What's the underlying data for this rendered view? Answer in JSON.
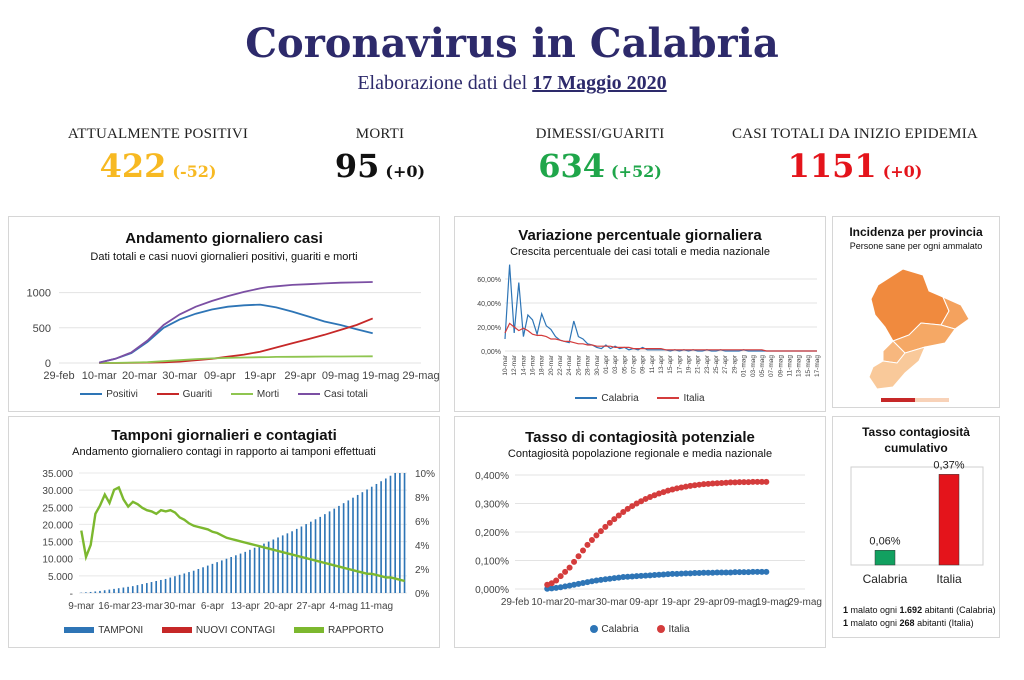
{
  "header": {
    "title": "Coronavirus in Calabria",
    "subtitle_prefix": "Elaborazione dati del",
    "subtitle_date": "17 Maggio 2020"
  },
  "kpis": [
    {
      "label": "ATTUALMENTE POSITIVI",
      "value": "422",
      "delta": "(-52)",
      "color": "#f7b922"
    },
    {
      "label": "MORTI",
      "value": "95",
      "delta": "(+0)",
      "color": "#111111"
    },
    {
      "label": "DIMESSI/GUARITI",
      "value": "634",
      "delta": "(+52)",
      "color": "#1fa64a"
    },
    {
      "label": "CASI TOTALI DA INIZIO EPIDEMIA",
      "value": "1151",
      "delta": "(+0)",
      "color": "#e4141b"
    }
  ],
  "panels": {
    "andamento": {
      "title": "Andamento giornaliero casi",
      "subtitle": "Dati totali e casi nuovi giornalieri positivi, guariti e morti",
      "legend": [
        "Positivi",
        "Guariti",
        "Morti",
        "Casi totali"
      ]
    },
    "variazione": {
      "title": "Variazione percentuale giornaliera",
      "subtitle": "Crescita percentuale dei casi totali e media nazionale",
      "legend": [
        "Calabria",
        "Italia"
      ]
    },
    "incidenza": {
      "title": "Incidenza per provincia",
      "subtitle": "Persone sane per ogni ammalato"
    },
    "tamponi": {
      "title": "Tamponi giornalieri e contagiati",
      "subtitle": "Andamento giornaliero contagi in rapporto ai tamponi effettuati",
      "legend": [
        "TAMPONI",
        "NUOVI CONTAGI",
        "RAPPORTO"
      ]
    },
    "tasso": {
      "title": "Tasso di contagiosità potenziale",
      "subtitle": "Contagiosità popolazione regionale e media nazionale",
      "legend": [
        "Calabria",
        "Italia"
      ]
    },
    "cumulativo": {
      "title_line1": "Tasso contagiosità",
      "title_line2": "cumulativo",
      "note1_strong": "1",
      "note1_mid": " malato ogni ",
      "note1_num": "1.692",
      "note1_end": " abitanti (Calabria)",
      "note2_strong": "1",
      "note2_mid": " malato ogni ",
      "note2_num": "268",
      "note2_end": " abitanti (Italia)"
    }
  },
  "colors": {
    "positivi": "#2e75b6",
    "guariti": "#c62828",
    "morti": "#8fc550",
    "casi": "#7b4fa3",
    "calabria": "#2e75b6",
    "italia": "#d43c3c",
    "tamponi": "#2e75b6",
    "contagi": "#c62828",
    "rapporto": "#7cb82f",
    "bar_calabria": "#12a060",
    "bar_italia": "#e4141b"
  },
  "chart_data": [
    {
      "type": "line",
      "title": "Andamento giornaliero casi",
      "x_ticks": [
        "29-feb",
        "10-mar",
        "20-mar",
        "30-mar",
        "09-apr",
        "19-apr",
        "29-apr",
        "09-mag",
        "19-mag",
        "29-mag"
      ],
      "y_ticks": [
        "0",
        "500",
        "1000"
      ],
      "ylim": [
        0,
        1250
      ],
      "x": [
        10,
        14,
        18,
        22,
        26,
        30,
        34,
        38,
        42,
        46,
        50,
        52,
        54,
        58,
        62,
        66,
        70,
        74,
        78
      ],
      "series": [
        {
          "name": "Positivi",
          "values": [
            5,
            60,
            140,
            300,
            500,
            620,
            700,
            760,
            800,
            820,
            830,
            810,
            790,
            730,
            660,
            590,
            540,
            480,
            422
          ]
        },
        {
          "name": "Guariti",
          "values": [
            0,
            0,
            3,
            5,
            10,
            20,
            40,
            60,
            90,
            120,
            160,
            190,
            220,
            280,
            340,
            400,
            470,
            540,
            634
          ]
        },
        {
          "name": "Morti",
          "values": [
            0,
            2,
            5,
            12,
            25,
            40,
            55,
            65,
            72,
            78,
            82,
            84,
            86,
            88,
            90,
            92,
            93,
            94,
            95
          ]
        },
        {
          "name": "Casi totali",
          "values": [
            5,
            60,
            150,
            320,
            540,
            690,
            800,
            880,
            950,
            1010,
            1060,
            1080,
            1090,
            1110,
            1120,
            1130,
            1140,
            1145,
            1151
          ]
        }
      ]
    },
    {
      "type": "line",
      "title": "Variazione percentuale giornaliera",
      "x_ticks": [
        "10-mar",
        "12-mar",
        "14-mar",
        "16-mar",
        "18-mar",
        "20-mar",
        "22-mar",
        "24-mar",
        "26-mar",
        "28-mar",
        "30-mar",
        "01-apr",
        "03-apr",
        "05-apr",
        "07-apr",
        "09-apr",
        "11-apr",
        "13-apr",
        "15-apr",
        "17-apr",
        "19-apr",
        "21-apr",
        "23-apr",
        "25-apr",
        "27-apr",
        "29-apr",
        "01-mag",
        "03-mag",
        "05-mag",
        "07-mag",
        "09-mag",
        "11-mag",
        "13-mag",
        "15-mag",
        "17-mag"
      ],
      "y_ticks": [
        "0,00%",
        "20,00%",
        "40,00%",
        "60,00%"
      ],
      "ylim": [
        0,
        70
      ],
      "series": [
        {
          "name": "Calabria",
          "values": [
            10,
            72,
            15,
            57,
            12,
            30,
            26,
            14,
            31,
            21,
            18,
            12,
            9,
            8,
            7,
            25,
            12,
            10,
            6,
            5,
            3,
            2,
            5,
            2,
            4,
            2,
            3,
            1,
            2,
            1,
            3,
            1,
            1,
            1,
            1,
            1,
            0,
            1,
            0,
            1,
            0,
            1,
            0,
            0,
            1,
            0,
            0,
            1,
            0,
            0,
            0,
            0,
            1,
            0,
            0,
            0,
            0,
            0,
            0,
            0,
            0,
            0,
            0,
            0,
            0,
            0,
            0,
            0,
            0
          ]
        },
        {
          "name": "Italia",
          "values": [
            15,
            23,
            20,
            17,
            19,
            17,
            14,
            13,
            13,
            12,
            10,
            10,
            9,
            8,
            8,
            7,
            6,
            6,
            5,
            5,
            4,
            4,
            4,
            4,
            3,
            3,
            3,
            3,
            2,
            2,
            2,
            2,
            2,
            2,
            2,
            1,
            1,
            1,
            1,
            1,
            1,
            1,
            1,
            1,
            1,
            1,
            1,
            1,
            1,
            1,
            1,
            1,
            1,
            1,
            1,
            1,
            1,
            0,
            0,
            0,
            0,
            0,
            0,
            0,
            0,
            0,
            0,
            0,
            0
          ]
        }
      ]
    },
    {
      "type": "bar",
      "title": "Tamponi giornalieri e contagiati",
      "x_ticks": [
        "9-mar",
        "16-mar",
        "23-mar",
        "30-mar",
        "6-apr",
        "13-apr",
        "20-apr",
        "27-apr",
        "4-mag",
        "11-mag"
      ],
      "y_ticks": [
        "-",
        "5.000",
        "10.000",
        "15.000",
        "20.000",
        "25.000",
        "30.000",
        "35.000"
      ],
      "y2_ticks": [
        "0%",
        "2%",
        "4%",
        "6%",
        "8%",
        "10%"
      ],
      "ylim": [
        0,
        35000
      ],
      "y2lim": [
        0,
        10
      ],
      "series": [
        {
          "name": "TAMPONI",
          "values": [
            100,
            200,
            300,
            450,
            600,
            800,
            1000,
            1200,
            1400,
            1600,
            1800,
            2000,
            2300,
            2600,
            2900,
            3200,
            3500,
            3800,
            4100,
            4500,
            4900,
            5300,
            5700,
            6100,
            6500,
            7000,
            7500,
            8000,
            8500,
            9000,
            9500,
            10000,
            10500,
            11000,
            11500,
            12000,
            12600,
            13200,
            13800,
            14400,
            15000,
            15600,
            16200,
            16800,
            17400,
            18000,
            18700,
            19400,
            20100,
            20800,
            21500,
            22200,
            23000,
            23800,
            24600,
            25400,
            26200,
            27000,
            27800,
            28600,
            29400,
            30200,
            31000,
            31800,
            32600,
            33400,
            34200,
            35000,
            35000,
            35000
          ]
        },
        {
          "name": "NUOVI CONTAGI",
          "values": [
            2,
            4,
            6,
            8,
            10,
            12,
            15,
            18,
            20,
            22,
            25,
            28,
            30,
            32,
            30,
            28,
            26,
            24,
            22,
            20,
            18,
            16,
            14,
            12,
            10,
            9,
            8,
            7,
            6,
            5,
            5,
            4,
            4,
            3,
            3,
            3,
            2,
            2,
            2,
            2,
            1,
            1,
            1,
            1,
            1,
            1,
            1,
            1,
            1,
            1,
            1,
            1,
            1,
            0,
            0,
            0,
            0,
            0,
            0,
            0,
            0,
            0,
            0,
            0,
            0,
            0,
            0,
            0,
            0,
            0
          ]
        },
        {
          "name": "RAPPORTO",
          "values": [
            5.2,
            3.0,
            4.0,
            6.6,
            7.3,
            8.2,
            7.5,
            8.6,
            8.8,
            7.8,
            7.2,
            7.6,
            7.4,
            7.1,
            6.9,
            6.8,
            6.6,
            6.9,
            6.8,
            6.9,
            6.7,
            6.3,
            6.1,
            5.8,
            5.6,
            5.5,
            5.4,
            5.3,
            5.1,
            5.0,
            4.8,
            4.6,
            4.5,
            4.4,
            4.3,
            4.2,
            4.1,
            4.0,
            3.9,
            3.8,
            3.7,
            3.6,
            3.5,
            3.4,
            3.3,
            3.2,
            3.1,
            3.0,
            2.9,
            2.8,
            2.7,
            2.6,
            2.5,
            2.4,
            2.3,
            2.2,
            2.1,
            2.0,
            1.9,
            1.8,
            1.7,
            1.6,
            1.6,
            1.5,
            1.4,
            1.3,
            1.3,
            1.2,
            1.1,
            1.0
          ]
        }
      ]
    },
    {
      "type": "scatter",
      "title": "Tasso di contagiosità potenziale",
      "x_ticks": [
        "29-feb",
        "10-mar",
        "20-mar",
        "30-mar",
        "09-apr",
        "19-apr",
        "29-apr",
        "09-mag",
        "19-mag",
        "29-mag"
      ],
      "y_ticks": [
        "0,000%",
        "0,100%",
        "0,200%",
        "0,300%",
        "0,400%"
      ],
      "ylim": [
        0,
        0.4
      ],
      "series": [
        {
          "name": "Calabria",
          "values": [
            0.001,
            0.002,
            0.004,
            0.006,
            0.009,
            0.012,
            0.015,
            0.018,
            0.021,
            0.024,
            0.027,
            0.03,
            0.032,
            0.034,
            0.036,
            0.038,
            0.04,
            0.042,
            0.043,
            0.044,
            0.045,
            0.046,
            0.047,
            0.048,
            0.049,
            0.05,
            0.051,
            0.052,
            0.053,
            0.053,
            0.054,
            0.055,
            0.055,
            0.056,
            0.056,
            0.057,
            0.057,
            0.057,
            0.058,
            0.058,
            0.058,
            0.058,
            0.059,
            0.059,
            0.059,
            0.059,
            0.06,
            0.06,
            0.06,
            0.06
          ]
        },
        {
          "name": "Italia",
          "values": [
            0.015,
            0.02,
            0.03,
            0.045,
            0.06,
            0.075,
            0.095,
            0.115,
            0.135,
            0.155,
            0.172,
            0.188,
            0.203,
            0.218,
            0.232,
            0.245,
            0.258,
            0.27,
            0.281,
            0.291,
            0.3,
            0.308,
            0.316,
            0.323,
            0.329,
            0.335,
            0.34,
            0.345,
            0.349,
            0.353,
            0.356,
            0.359,
            0.362,
            0.364,
            0.366,
            0.368,
            0.369,
            0.37,
            0.371,
            0.372,
            0.373,
            0.374,
            0.374,
            0.375,
            0.375,
            0.375,
            0.376,
            0.376,
            0.376,
            0.376
          ]
        }
      ]
    },
    {
      "type": "bar",
      "title": "Tasso contagiosità cumulativo",
      "categories": [
        "Calabria",
        "Italia"
      ],
      "values": [
        0.06,
        0.37
      ],
      "labels": [
        "0,06%",
        "0,37%"
      ],
      "ylim": [
        0,
        0.4
      ]
    }
  ]
}
